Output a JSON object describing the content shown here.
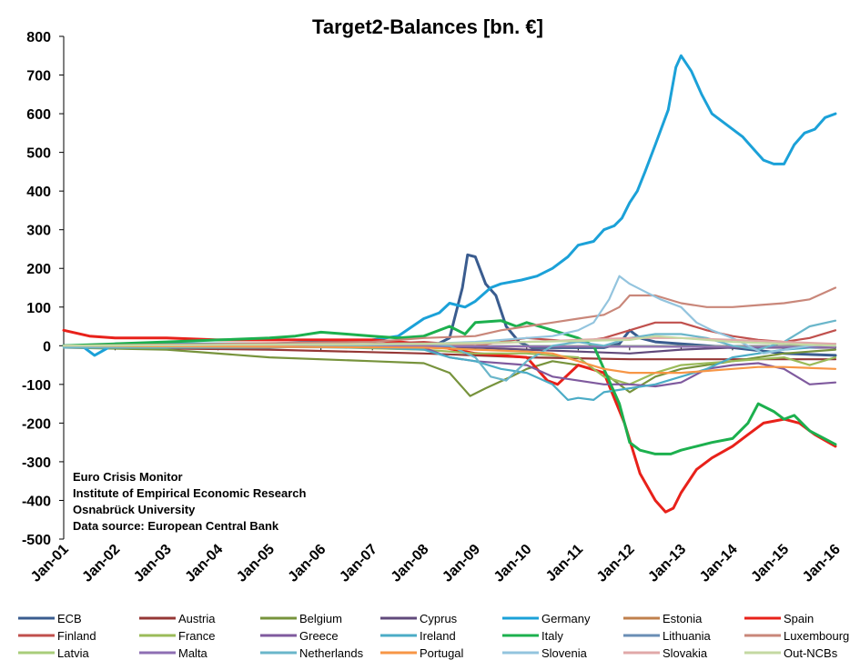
{
  "chart_data": {
    "type": "line",
    "title": "Target2-Balances [bn. €]",
    "xlabel": "",
    "ylabel": "",
    "ylim": [
      -500,
      800
    ],
    "yticks": [
      "800",
      "700",
      "600",
      "500",
      "400",
      "300",
      "200",
      "100",
      "0",
      "-100",
      "-200",
      "-300",
      "-400",
      "-500"
    ],
    "xticks": [
      "Jan-01",
      "Jan-02",
      "Jan-03",
      "Jan-04",
      "Jan-05",
      "Jan-06",
      "Jan-07",
      "Jan-08",
      "Jan-09",
      "Jan-10",
      "Jan-11",
      "Jan-12",
      "Jan-13",
      "Jan-14",
      "Jan-15",
      "Jan-16"
    ],
    "x_range_years": [
      2001.0,
      2016.0
    ],
    "grid": false,
    "legend_position": "bottom",
    "annotations": [
      "Euro Crisis Monitor",
      "Institute of Empirical Economic Research",
      "Osnabrück University",
      "Data source: European Central Bank"
    ],
    "series": [
      {
        "name": "ECB",
        "color": "#3A5C8F",
        "x": [
          2001,
          2008.2,
          2008.5,
          2008.75,
          2008.85,
          2009.0,
          2009.2,
          2009.4,
          2009.6,
          2009.85,
          2010.1,
          2010.5,
          2011.0,
          2011.5,
          2011.8,
          2012.0,
          2012.2,
          2012.5,
          2013,
          2014,
          2015,
          2016
        ],
        "y": [
          0,
          0,
          20,
          150,
          235,
          230,
          160,
          130,
          50,
          10,
          -5,
          -5,
          -5,
          -5,
          5,
          40,
          20,
          10,
          5,
          -5,
          -20,
          -25
        ]
      },
      {
        "name": "Austria",
        "color": "#953735",
        "x": [
          2001,
          2005,
          2008,
          2010,
          2012,
          2014,
          2016
        ],
        "y": [
          -5,
          -10,
          -20,
          -30,
          -35,
          -35,
          -35
        ]
      },
      {
        "name": "Belgium",
        "color": "#77933C",
        "x": [
          2001,
          2003,
          2005,
          2007,
          2008,
          2008.5,
          2008.9,
          2009.2,
          2009.7,
          2010,
          2010.5,
          2011,
          2011.5,
          2012,
          2012.5,
          2013,
          2014,
          2015,
          2016
        ],
        "y": [
          -5,
          -10,
          -30,
          -40,
          -45,
          -70,
          -130,
          -110,
          -80,
          -60,
          -40,
          -50,
          -70,
          -120,
          -80,
          -60,
          -40,
          -20,
          -10
        ]
      },
      {
        "name": "Cyprus",
        "color": "#604A7B",
        "x": [
          2001,
          2008,
          2009,
          2010,
          2011,
          2012,
          2013,
          2014,
          2015,
          2016
        ],
        "y": [
          0,
          -2,
          -5,
          -10,
          -15,
          -20,
          -10,
          -5,
          -5,
          -5
        ]
      },
      {
        "name": "Germany",
        "color": "#1BA1D8",
        "x": [
          2001,
          2001.4,
          2001.6,
          2002,
          2003,
          2004,
          2005,
          2006,
          2007,
          2007.5,
          2008,
          2008.3,
          2008.5,
          2008.8,
          2009,
          2009.3,
          2009.5,
          2009.9,
          2010.2,
          2010.5,
          2010.8,
          2011,
          2011.3,
          2011.5,
          2011.7,
          2011.85,
          2012,
          2012.15,
          2012.3,
          2012.5,
          2012.75,
          2012.9,
          2013,
          2013.2,
          2013.4,
          2013.6,
          2013.8,
          2014,
          2014.2,
          2014.4,
          2014.6,
          2014.8,
          2015,
          2015.2,
          2015.4,
          2015.6,
          2015.8,
          2016
        ],
        "y": [
          0,
          -5,
          -25,
          5,
          5,
          5,
          5,
          10,
          15,
          25,
          70,
          85,
          110,
          100,
          115,
          150,
          160,
          170,
          180,
          200,
          230,
          260,
          270,
          300,
          310,
          330,
          370,
          400,
          450,
          520,
          610,
          720,
          750,
          710,
          650,
          600,
          580,
          560,
          540,
          510,
          480,
          470,
          470,
          520,
          550,
          560,
          590,
          600
        ]
      },
      {
        "name": "Estonia",
        "color": "#C0804D",
        "x": [
          2001,
          2011,
          2016
        ],
        "y": [
          0,
          -2,
          -3
        ]
      },
      {
        "name": "Spain",
        "color": "#E8211A",
        "x": [
          2001,
          2001.5,
          2002,
          2003,
          2004,
          2005,
          2006,
          2007,
          2008,
          2009,
          2010,
          2010.4,
          2010.6,
          2011,
          2011.5,
          2011.9,
          2012.2,
          2012.5,
          2012.7,
          2012.85,
          2013,
          2013.3,
          2013.6,
          2014,
          2014.3,
          2014.6,
          2015,
          2015.3,
          2015.6,
          2016
        ],
        "y": [
          40,
          25,
          20,
          20,
          15,
          15,
          15,
          15,
          5,
          -20,
          -30,
          -90,
          -100,
          -50,
          -70,
          -200,
          -330,
          -400,
          -430,
          -420,
          -380,
          -320,
          -290,
          -260,
          -230,
          -200,
          -190,
          -200,
          -230,
          -260
        ]
      },
      {
        "name": "Finland",
        "color": "#C0504D",
        "x": [
          2001,
          2006,
          2008,
          2009,
          2010,
          2011,
          2011.5,
          2012,
          2012.5,
          2013,
          2013.5,
          2014,
          2014.5,
          2015,
          2015.5,
          2016
        ],
        "y": [
          0,
          0,
          10,
          0,
          20,
          10,
          20,
          40,
          60,
          60,
          40,
          25,
          15,
          10,
          20,
          40
        ]
      },
      {
        "name": "France",
        "color": "#9BBB59",
        "x": [
          2001,
          2005,
          2008,
          2009,
          2010,
          2011,
          2011.5,
          2012,
          2012.5,
          2013,
          2014,
          2015,
          2015.5,
          2016
        ],
        "y": [
          0,
          0,
          -10,
          -20,
          -20,
          -30,
          -80,
          -100,
          -70,
          -50,
          -40,
          -30,
          -50,
          -30
        ]
      },
      {
        "name": "Greece",
        "color": "#7F5A9E",
        "x": [
          2001,
          2005,
          2008,
          2008.5,
          2009,
          2010,
          2010.5,
          2011,
          2011.5,
          2012,
          2012.5,
          2013,
          2013.5,
          2014,
          2014.5,
          2015,
          2015.5,
          2016
        ],
        "y": [
          0,
          -2,
          -5,
          -30,
          -40,
          -50,
          -80,
          -90,
          -100,
          -100,
          -105,
          -95,
          -60,
          -50,
          -45,
          -60,
          -100,
          -95
        ]
      },
      {
        "name": "Ireland",
        "color": "#4BACC6",
        "x": [
          2001,
          2007,
          2008,
          2008.5,
          2009,
          2009.5,
          2010,
          2010.5,
          2010.8,
          2011,
          2011.3,
          2011.5,
          2012,
          2012.5,
          2013,
          2013.5,
          2014,
          2014.5,
          2015,
          2015.5,
          2016
        ],
        "y": [
          0,
          -5,
          -10,
          -30,
          -40,
          -60,
          -70,
          -100,
          -140,
          -135,
          -140,
          -120,
          -110,
          -100,
          -80,
          -60,
          -30,
          -20,
          -10,
          -5,
          0
        ]
      },
      {
        "name": "Italy",
        "color": "#1CB04E",
        "x": [
          2001,
          2002,
          2003,
          2004,
          2005,
          2005.5,
          2006,
          2006.5,
          2007,
          2007.5,
          2008,
          2008.5,
          2008.8,
          2009,
          2009.5,
          2009.8,
          2010,
          2010.5,
          2011,
          2011.3,
          2011.5,
          2011.8,
          2012,
          2012.2,
          2012.5,
          2012.8,
          2013,
          2013.3,
          2013.6,
          2014,
          2014.3,
          2014.5,
          2014.8,
          2015,
          2015.2,
          2015.5,
          2016
        ],
        "y": [
          0,
          5,
          10,
          15,
          20,
          25,
          35,
          30,
          25,
          20,
          25,
          50,
          30,
          60,
          65,
          50,
          60,
          40,
          20,
          0,
          -60,
          -150,
          -250,
          -270,
          -280,
          -280,
          -270,
          -260,
          -250,
          -240,
          -200,
          -150,
          -170,
          -190,
          -180,
          -220,
          -255
        ]
      },
      {
        "name": "Lithuania",
        "color": "#6A8EB5",
        "x": [
          2001,
          2016
        ],
        "y": [
          0,
          -2
        ]
      },
      {
        "name": "Luxembourg",
        "color": "#C9877A",
        "x": [
          2001,
          2004,
          2007,
          2008,
          2009,
          2009.5,
          2010,
          2010.5,
          2011,
          2011.5,
          2011.8,
          2012,
          2012.5,
          2013,
          2013.5,
          2014,
          2014.5,
          2015,
          2015.5,
          2016
        ],
        "y": [
          0,
          5,
          10,
          20,
          25,
          40,
          50,
          60,
          70,
          80,
          100,
          130,
          130,
          110,
          100,
          100,
          105,
          110,
          120,
          150
        ]
      },
      {
        "name": "Latvia",
        "color": "#A8CD7A",
        "x": [
          2001,
          2016
        ],
        "y": [
          0,
          -2
        ]
      },
      {
        "name": "Malta",
        "color": "#8E6FB3",
        "x": [
          2001,
          2016
        ],
        "y": [
          0,
          -3
        ]
      },
      {
        "name": "Netherlands",
        "color": "#6AB6CA",
        "x": [
          2001,
          2005,
          2008,
          2008.5,
          2009,
          2009.3,
          2009.6,
          2010,
          2010.5,
          2011,
          2011.5,
          2012,
          2012.5,
          2013,
          2013.5,
          2014,
          2014.5,
          2015,
          2015.5,
          2016
        ],
        "y": [
          -5,
          -5,
          5,
          0,
          -30,
          -80,
          -90,
          -40,
          0,
          10,
          0,
          20,
          30,
          30,
          20,
          0,
          -10,
          10,
          50,
          65
        ]
      },
      {
        "name": "Portugal",
        "color": "#F79646",
        "x": [
          2001,
          2008,
          2009,
          2010,
          2010.5,
          2011,
          2011.5,
          2012,
          2012.5,
          2013,
          2013.5,
          2014,
          2014.5,
          2015,
          2016
        ],
        "y": [
          0,
          -5,
          -10,
          -15,
          -20,
          -40,
          -60,
          -70,
          -70,
          -70,
          -65,
          -60,
          -55,
          -55,
          -60
        ]
      },
      {
        "name": "Slovenia",
        "color": "#93C4DE",
        "x": [
          2001,
          2008,
          2009,
          2010,
          2010.5,
          2011,
          2011.3,
          2011.6,
          2011.8,
          2012,
          2012.3,
          2012.6,
          2013,
          2013.3,
          2013.6,
          2014,
          2014.3,
          2014.6,
          2015,
          2015.5,
          2016
        ],
        "y": [
          0,
          5,
          10,
          20,
          25,
          40,
          60,
          120,
          180,
          160,
          140,
          120,
          100,
          60,
          40,
          20,
          0,
          -20,
          -10,
          0,
          5
        ]
      },
      {
        "name": "Slovakia",
        "color": "#E0A8A8",
        "x": [
          2001,
          2009,
          2010,
          2011,
          2012,
          2013,
          2014,
          2015,
          2016
        ],
        "y": [
          0,
          5,
          10,
          15,
          20,
          20,
          15,
          10,
          5
        ]
      },
      {
        "name": "Out-NCBs",
        "color": "#C4D9A2",
        "x": [
          2001,
          2008,
          2010,
          2012,
          2012.5,
          2013,
          2013.5,
          2014,
          2015,
          2016
        ],
        "y": [
          0,
          5,
          10,
          15,
          25,
          20,
          15,
          10,
          5,
          0
        ]
      }
    ]
  }
}
